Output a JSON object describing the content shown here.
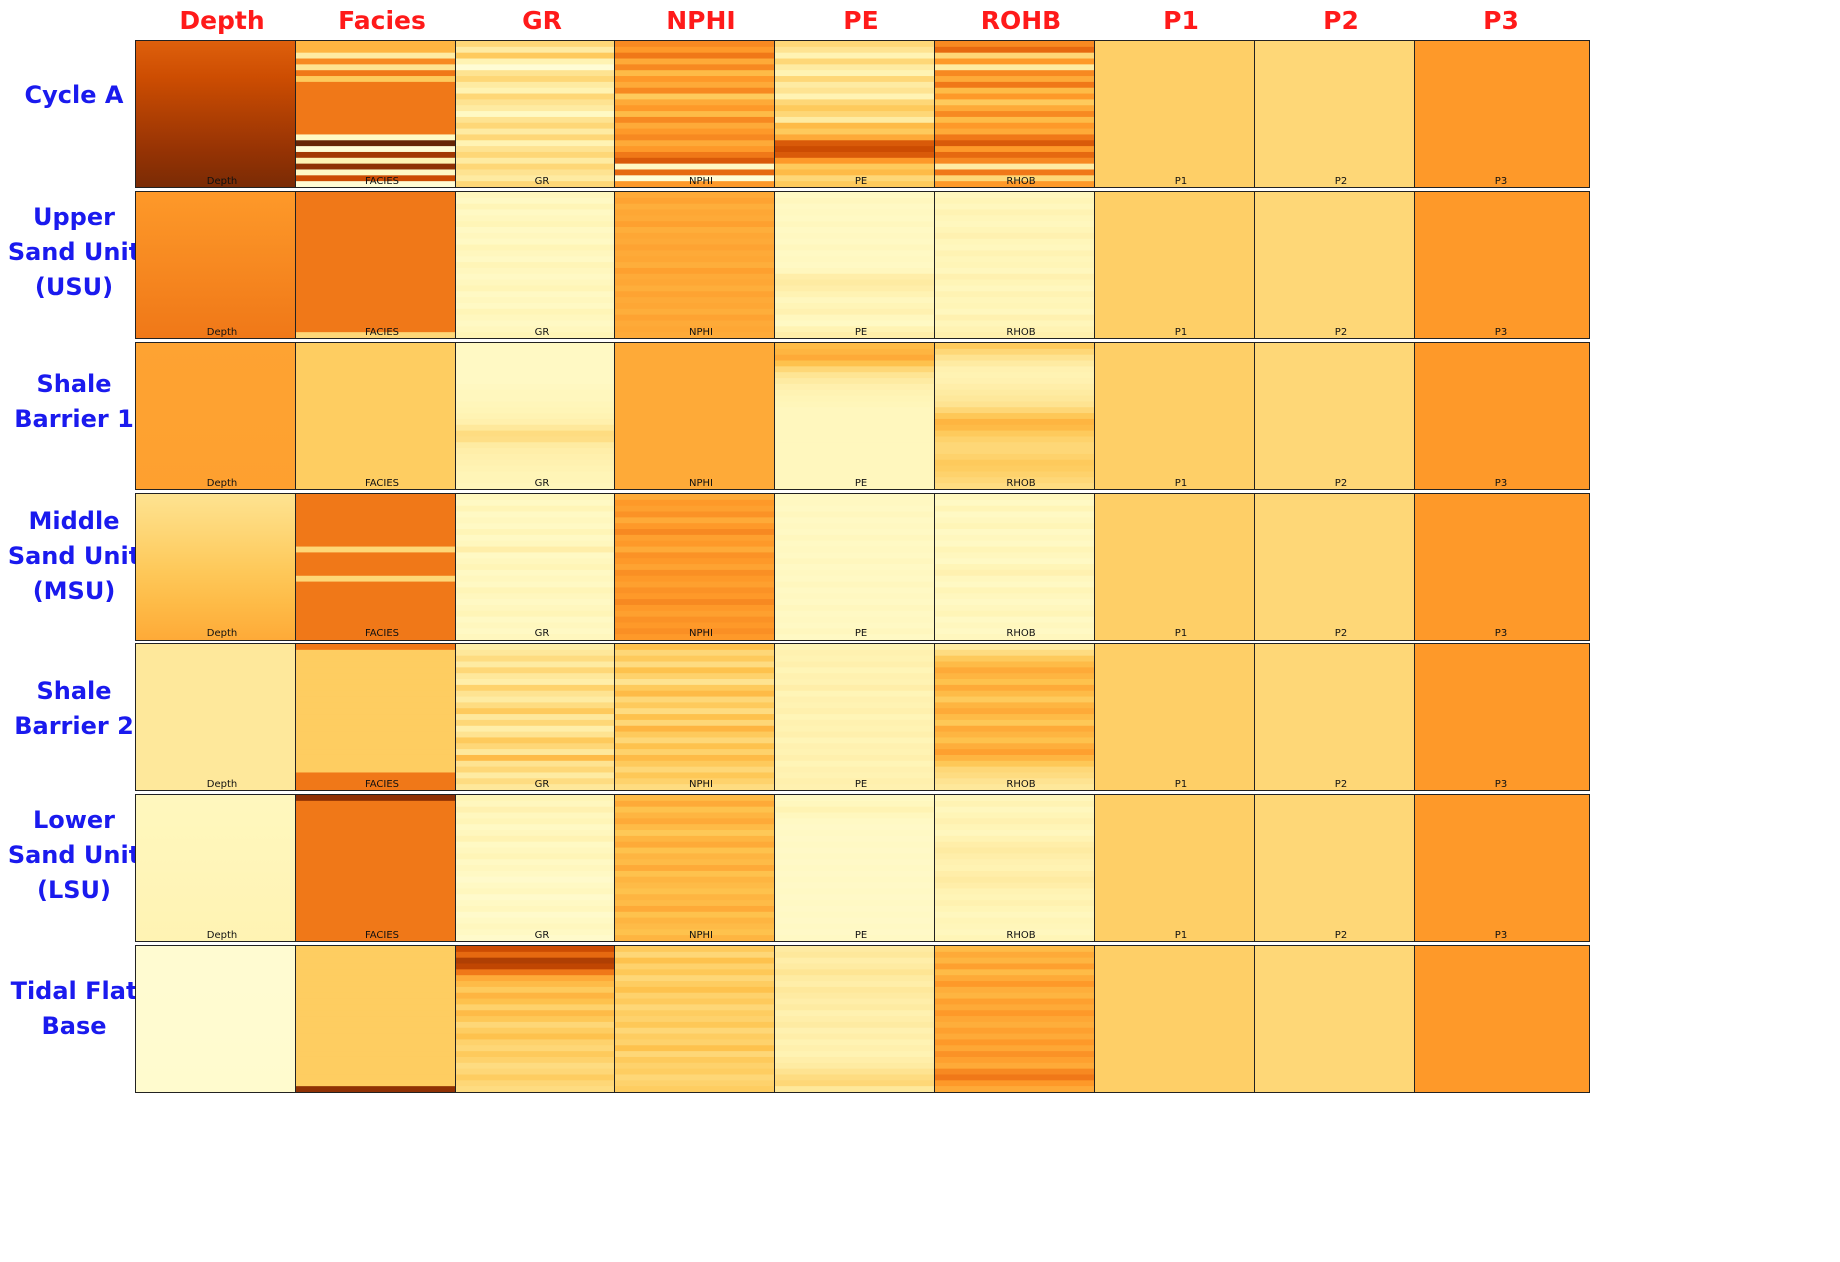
{
  "chart_data": {
    "type": "heatmap",
    "colormap": "YlOrBr",
    "column_headers": [
      "Depth",
      "Facies",
      "GR",
      "NPHI",
      "PE",
      "ROHB",
      "P1",
      "P2",
      "P3"
    ],
    "panel_titles": [
      "Depth",
      "FACIES",
      "GR",
      "NPHI",
      "PE",
      "RHOB",
      "P1",
      "P2",
      "P3"
    ],
    "rows": [
      {
        "label": "Cycle A",
        "show_panel_titles": false,
        "cells": [
          [
            0.68,
            0.95
          ],
          [
            0.42,
            0.42,
            0.2,
            0.55,
            0.25,
            0.6,
            0.35,
            0.6,
            0.6,
            0.6,
            0.6,
            0.6,
            0.6,
            0.6,
            0.6,
            0.6,
            0.1,
            1.0,
            0.05,
            0.85,
            0.15,
            0.9,
            0.1,
            0.75,
            0.05
          ],
          [
            0.3,
            0.2,
            0.35,
            0.15,
            0.05,
            0.25,
            0.3,
            0.2,
            0.15,
            0.3,
            0.25,
            0.2,
            0.1,
            0.25,
            0.3,
            0.2,
            0.3,
            0.15,
            0.25,
            0.3,
            0.2,
            0.3,
            0.25,
            0.2,
            0.3
          ],
          [
            0.55,
            0.5,
            0.6,
            0.45,
            0.55,
            0.4,
            0.5,
            0.45,
            0.55,
            0.35,
            0.45,
            0.5,
            0.4,
            0.55,
            0.45,
            0.5,
            0.55,
            0.45,
            0.5,
            0.6,
            0.7,
            0.1,
            0.65,
            0.05,
            0.5
          ],
          [
            0.3,
            0.25,
            0.15,
            0.3,
            0.2,
            0.15,
            0.3,
            0.2,
            0.25,
            0.15,
            0.3,
            0.35,
            0.3,
            0.2,
            0.4,
            0.35,
            0.45,
            0.7,
            0.75,
            0.7,
            0.5,
            0.35,
            0.4,
            0.3,
            0.35
          ],
          [
            0.55,
            0.65,
            0.3,
            0.5,
            0.2,
            0.55,
            0.45,
            0.6,
            0.4,
            0.5,
            0.35,
            0.45,
            0.55,
            0.4,
            0.5,
            0.45,
            0.6,
            0.7,
            0.5,
            0.65,
            0.55,
            0.2,
            0.6,
            0.3,
            0.5
          ],
          [
            0.33
          ],
          [
            0.3
          ],
          [
            0.5
          ]
        ]
      },
      {
        "label": "Upper Sand Unit (USU)",
        "show_panel_titles": true,
        "cells": [
          [
            0.5,
            0.6
          ],
          [
            0.6,
            0.6,
            0.6,
            0.6,
            0.6,
            0.6,
            0.6,
            0.6,
            0.6,
            0.6,
            0.6,
            0.6,
            0.6,
            0.6,
            0.6,
            0.6,
            0.6,
            0.6,
            0.6,
            0.6,
            0.6,
            0.6,
            0.6,
            0.6,
            0.3
          ],
          [
            0.12,
            0.1,
            0.14,
            0.1,
            0.12,
            0.14,
            0.1,
            0.12,
            0.1,
            0.14,
            0.12,
            0.1,
            0.14,
            0.12,
            0.1,
            0.12,
            0.14,
            0.1,
            0.12,
            0.1,
            0.14,
            0.12,
            0.1,
            0.12,
            0.14
          ],
          [
            0.45,
            0.47,
            0.44,
            0.46,
            0.45,
            0.48,
            0.44,
            0.46,
            0.45,
            0.47,
            0.45,
            0.46,
            0.44,
            0.48,
            0.45,
            0.46,
            0.44,
            0.47,
            0.45,
            0.46,
            0.44,
            0.47,
            0.45,
            0.46,
            0.45
          ],
          [
            0.1,
            0.12,
            0.1,
            0.11,
            0.1,
            0.12,
            0.1,
            0.11,
            0.1,
            0.12,
            0.1,
            0.11,
            0.1,
            0.12,
            0.18,
            0.2,
            0.18,
            0.15,
            0.12,
            0.14,
            0.16,
            0.12,
            0.1,
            0.15,
            0.18
          ],
          [
            0.12,
            0.14,
            0.12,
            0.15,
            0.13,
            0.12,
            0.14,
            0.16,
            0.13,
            0.12,
            0.15,
            0.13,
            0.14,
            0.12,
            0.16,
            0.14,
            0.12,
            0.15,
            0.13,
            0.14,
            0.12,
            0.16,
            0.13,
            0.15,
            0.17
          ],
          [
            0.33
          ],
          [
            0.3
          ],
          [
            0.5
          ]
        ]
      },
      {
        "label": "Shale Barrier 1",
        "show_panel_titles": true,
        "cells": [
          [
            0.47,
            0.48
          ],
          [
            0.34
          ],
          [
            0.1,
            0.1,
            0.1,
            0.1,
            0.1,
            0.1,
            0.1,
            0.11,
            0.12,
            0.12,
            0.13,
            0.14,
            0.15,
            0.17,
            0.22,
            0.28,
            0.27,
            0.2,
            0.18,
            0.17,
            0.16,
            0.15,
            0.14,
            0.14,
            0.13
          ],
          [
            0.45
          ],
          [
            0.4,
            0.42,
            0.45,
            0.38,
            0.3,
            0.24,
            0.2,
            0.17,
            0.15,
            0.14,
            0.13,
            0.12,
            0.12,
            0.12,
            0.12,
            0.12,
            0.12,
            0.12,
            0.12,
            0.12,
            0.12,
            0.12,
            0.12,
            0.12,
            0.12
          ],
          [
            0.35,
            0.3,
            0.25,
            0.2,
            0.16,
            0.15,
            0.16,
            0.18,
            0.2,
            0.22,
            0.25,
            0.3,
            0.36,
            0.42,
            0.4,
            0.35,
            0.32,
            0.3,
            0.3,
            0.32,
            0.35,
            0.34,
            0.32,
            0.3,
            0.28
          ],
          [
            0.33
          ],
          [
            0.3
          ],
          [
            0.5
          ]
        ]
      },
      {
        "label": "Middle Sand Unit (MSU)",
        "show_panel_titles": true,
        "cells": [
          [
            0.25,
            0.45
          ],
          [
            0.6,
            0.6,
            0.6,
            0.6,
            0.6,
            0.6,
            0.6,
            0.6,
            0.6,
            0.3,
            0.6,
            0.6,
            0.6,
            0.6,
            0.3,
            0.6,
            0.6,
            0.6,
            0.6,
            0.6,
            0.6,
            0.6,
            0.6,
            0.6,
            0.6
          ],
          [
            0.12,
            0.1,
            0.14,
            0.1,
            0.12,
            0.1,
            0.14,
            0.1,
            0.12,
            0.18,
            0.1,
            0.12,
            0.14,
            0.1,
            0.12,
            0.1,
            0.14,
            0.12,
            0.1,
            0.12,
            0.14,
            0.1,
            0.12,
            0.1,
            0.12
          ],
          [
            0.45,
            0.5,
            0.48,
            0.52,
            0.45,
            0.5,
            0.55,
            0.48,
            0.5,
            0.45,
            0.52,
            0.5,
            0.47,
            0.53,
            0.5,
            0.48,
            0.52,
            0.5,
            0.55,
            0.5,
            0.48,
            0.52,
            0.5,
            0.53,
            0.5
          ],
          [
            0.1,
            0.11,
            0.1,
            0.12,
            0.1,
            0.11,
            0.1,
            0.12,
            0.1,
            0.11,
            0.1,
            0.12,
            0.1,
            0.11,
            0.1,
            0.12,
            0.1,
            0.11,
            0.1,
            0.12,
            0.1,
            0.11,
            0.1,
            0.12,
            0.1
          ],
          [
            0.12,
            0.1,
            0.14,
            0.1,
            0.12,
            0.14,
            0.1,
            0.12,
            0.1,
            0.14,
            0.12,
            0.1,
            0.14,
            0.16,
            0.12,
            0.1,
            0.14,
            0.12,
            0.1,
            0.12,
            0.14,
            0.1,
            0.12,
            0.1,
            0.12
          ],
          [
            0.33
          ],
          [
            0.3
          ],
          [
            0.5
          ]
        ]
      },
      {
        "label": "Shale Barrier 2",
        "show_panel_titles": true,
        "cells": [
          [
            0.22,
            0.22
          ],
          [
            0.6,
            0.34,
            0.34,
            0.34,
            0.34,
            0.34,
            0.34,
            0.34,
            0.34,
            0.34,
            0.34,
            0.34,
            0.34,
            0.34,
            0.34,
            0.34,
            0.34,
            0.34,
            0.34,
            0.34,
            0.34,
            0.34,
            0.6,
            0.6,
            0.6
          ],
          [
            0.18,
            0.22,
            0.28,
            0.2,
            0.3,
            0.22,
            0.18,
            0.32,
            0.25,
            0.2,
            0.28,
            0.35,
            0.22,
            0.3,
            0.18,
            0.25,
            0.35,
            0.3,
            0.22,
            0.4,
            0.25,
            0.3,
            0.2,
            0.28,
            0.22
          ],
          [
            0.38,
            0.3,
            0.35,
            0.28,
            0.38,
            0.32,
            0.25,
            0.35,
            0.4,
            0.3,
            0.35,
            0.28,
            0.38,
            0.3,
            0.42,
            0.35,
            0.3,
            0.38,
            0.32,
            0.4,
            0.35,
            0.3,
            0.36,
            0.32,
            0.28
          ],
          [
            0.14,
            0.16,
            0.15,
            0.17,
            0.14,
            0.16,
            0.15,
            0.18,
            0.14,
            0.16,
            0.15,
            0.17,
            0.14,
            0.16,
            0.15,
            0.17,
            0.14,
            0.16,
            0.15,
            0.17,
            0.14,
            0.16,
            0.15,
            0.17,
            0.16
          ],
          [
            0.2,
            0.28,
            0.35,
            0.4,
            0.45,
            0.42,
            0.38,
            0.45,
            0.4,
            0.35,
            0.42,
            0.45,
            0.4,
            0.36,
            0.45,
            0.42,
            0.38,
            0.44,
            0.48,
            0.42,
            0.36,
            0.3,
            0.28,
            0.25,
            0.22
          ],
          [
            0.33
          ],
          [
            0.3
          ],
          [
            0.5
          ]
        ]
      },
      {
        "label": "Lower Sand Unit (LSU)",
        "show_panel_titles": true,
        "cells": [
          [
            0.12,
            0.15
          ],
          [
            0.9,
            0.6,
            0.6,
            0.6,
            0.6,
            0.6,
            0.6,
            0.6,
            0.6,
            0.6,
            0.6,
            0.6,
            0.6,
            0.6,
            0.6,
            0.6,
            0.6,
            0.6,
            0.6,
            0.6,
            0.6,
            0.6,
            0.6,
            0.6,
            0.6
          ],
          [
            0.14,
            0.12,
            0.16,
            0.12,
            0.14,
            0.1,
            0.12,
            0.15,
            0.1,
            0.12,
            0.14,
            0.1,
            0.12,
            0.1,
            0.08,
            0.1,
            0.12,
            0.08,
            0.1,
            0.12,
            0.08,
            0.1,
            0.12,
            0.1,
            0.08
          ],
          [
            0.4,
            0.45,
            0.38,
            0.42,
            0.45,
            0.4,
            0.36,
            0.42,
            0.45,
            0.38,
            0.42,
            0.4,
            0.45,
            0.38,
            0.42,
            0.4,
            0.38,
            0.42,
            0.4,
            0.45,
            0.38,
            0.42,
            0.4,
            0.38,
            0.42
          ],
          [
            0.1,
            0.12,
            0.15,
            0.12,
            0.1,
            0.09,
            0.1,
            0.09,
            0.1,
            0.09,
            0.1,
            0.09,
            0.1,
            0.09,
            0.1,
            0.09,
            0.1,
            0.09,
            0.1,
            0.09,
            0.1,
            0.09,
            0.1,
            0.09,
            0.1
          ],
          [
            0.12,
            0.15,
            0.12,
            0.14,
            0.16,
            0.14,
            0.12,
            0.15,
            0.18,
            0.2,
            0.18,
            0.16,
            0.15,
            0.18,
            0.2,
            0.18,
            0.15,
            0.14,
            0.16,
            0.14,
            0.12,
            0.14,
            0.13,
            0.12,
            0.14
          ],
          [
            0.33
          ],
          [
            0.3
          ],
          [
            0.5
          ]
        ]
      },
      {
        "label": "Tidal Flat Base",
        "show_panel_titles": true,
        "cells": [
          [
            0.06,
            0.07
          ],
          [
            0.34,
            0.34,
            0.34,
            0.34,
            0.34,
            0.34,
            0.34,
            0.34,
            0.34,
            0.34,
            0.34,
            0.34,
            0.34,
            0.34,
            0.34,
            0.34,
            0.34,
            0.34,
            0.34,
            0.34,
            0.34,
            0.34,
            0.34,
            0.34,
            0.9
          ],
          [
            0.75,
            0.65,
            0.82,
            0.78,
            0.6,
            0.45,
            0.4,
            0.35,
            0.42,
            0.38,
            0.32,
            0.4,
            0.36,
            0.3,
            0.34,
            0.38,
            0.32,
            0.3,
            0.35,
            0.32,
            0.28,
            0.3,
            0.34,
            0.3,
            0.28
          ],
          [
            0.35,
            0.3,
            0.38,
            0.32,
            0.36,
            0.3,
            0.34,
            0.38,
            0.32,
            0.35,
            0.3,
            0.34,
            0.32,
            0.36,
            0.3,
            0.34,
            0.32,
            0.38,
            0.3,
            0.35,
            0.32,
            0.34,
            0.3,
            0.32,
            0.34
          ],
          [
            0.2,
            0.22,
            0.18,
            0.2,
            0.24,
            0.2,
            0.18,
            0.22,
            0.2,
            0.18,
            0.2,
            0.16,
            0.18,
            0.2,
            0.16,
            0.18,
            0.15,
            0.17,
            0.15,
            0.18,
            0.2,
            0.25,
            0.28,
            0.3,
            0.22
          ],
          [
            0.4,
            0.45,
            0.42,
            0.48,
            0.4,
            0.45,
            0.5,
            0.44,
            0.42,
            0.48,
            0.45,
            0.5,
            0.46,
            0.44,
            0.48,
            0.45,
            0.5,
            0.46,
            0.52,
            0.48,
            0.45,
            0.55,
            0.6,
            0.5,
            0.45
          ],
          [
            0.33
          ],
          [
            0.3
          ],
          [
            0.5
          ]
        ]
      }
    ]
  }
}
